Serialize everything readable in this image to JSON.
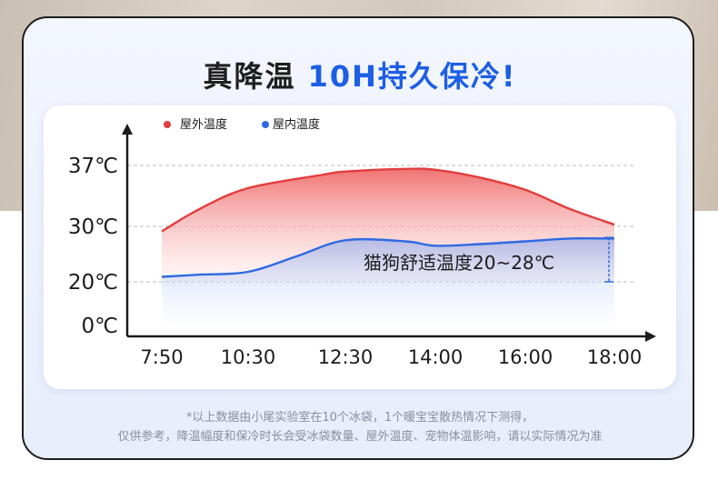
{
  "header": {
    "title_dark": "真降温",
    "title_blue": "10H持久保冷!"
  },
  "colors": {
    "outdoor": "#e23d3d",
    "indoor": "#2f6ae0",
    "accent": "#1c5ee6"
  },
  "chart_data": {
    "type": "area",
    "title": "",
    "xlabel": "",
    "ylabel": "",
    "categories": [
      "7:50",
      "10:30",
      "12:30",
      "14:00",
      "16:00",
      "18:00"
    ],
    "y_ticks": [
      "0℃",
      "20℃",
      "30℃",
      "37℃"
    ],
    "y_tick_values": [
      0,
      20,
      30,
      37
    ],
    "legend_position": "top-left",
    "grid": "dashed lines at 20, 30, 37",
    "series": [
      {
        "name": "屋外温度",
        "x": [
          "7:50",
          "9:00",
          "10:30",
          "12:00",
          "12:30",
          "13:30",
          "14:00",
          "15:00",
          "16:00",
          "17:00",
          "18:00"
        ],
        "values": [
          29.1,
          32.0,
          34.4,
          35.9,
          36.3,
          36.6,
          36.5,
          35.6,
          34.2,
          32.0,
          30.2
        ]
      },
      {
        "name": "屋内温度",
        "x": [
          "7:50",
          "9:00",
          "10:30",
          "11:30",
          "12:30",
          "13:30",
          "14:00",
          "15:00",
          "16:00",
          "17:00",
          "18:00"
        ],
        "values": [
          20.9,
          21.3,
          21.8,
          24.6,
          27.5,
          27.3,
          26.5,
          26.8,
          27.3,
          27.8,
          27.8
        ]
      }
    ],
    "annotations": [
      {
        "text": "猫狗舒适温度20~28℃",
        "range": [
          20,
          28
        ]
      }
    ]
  },
  "footnote": {
    "line1": "*以上数据由小尾实验室在10个冰袋，1个暖宝宝散热情况下测得，",
    "line2": "仅供参考，降温幅度和保冷时长会受冰袋数量、屋外温度、宠物体温影响，请以实际情况为准"
  }
}
